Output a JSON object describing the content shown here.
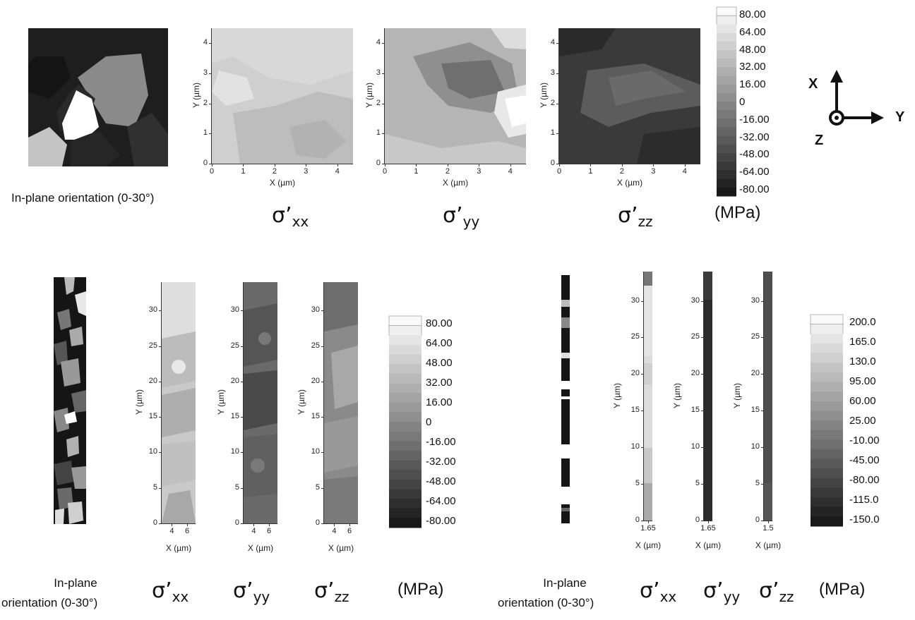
{
  "top_row": {
    "orientation_caption": "In-plane orientation (0-30°)",
    "maps": [
      {
        "id": "xx",
        "sigma": "σ’",
        "sub": "xx",
        "xlabel": "X (µm)",
        "ylabel": "Y (µm)",
        "xticks": [
          "0",
          "1",
          "2",
          "3",
          "4"
        ],
        "yticks": [
          "0",
          "1",
          "2",
          "3",
          "4"
        ]
      },
      {
        "id": "yy",
        "sigma": "σ’",
        "sub": "yy",
        "xlabel": "X (µm)",
        "ylabel": "Y (µm)",
        "xticks": [
          "0",
          "1",
          "2",
          "3",
          "4"
        ],
        "yticks": [
          "0",
          "1",
          "2",
          "3",
          "4"
        ]
      },
      {
        "id": "zz",
        "sigma": "σ’",
        "sub": "zz",
        "xlabel": "X (µm)",
        "ylabel": "Y (µm)",
        "xticks": [
          "0",
          "1",
          "2",
          "3",
          "4"
        ],
        "yticks": [
          "0",
          "1",
          "2",
          "3",
          "4"
        ]
      }
    ],
    "colorbar_values": [
      "80.00",
      "64.00",
      "48.00",
      "32.00",
      "16.00",
      "0",
      "-16.00",
      "-32.00",
      "-48.00",
      "-64.00",
      "-80.00"
    ],
    "unit": "(MPa)",
    "axes_triad": {
      "x": "X",
      "y": "Y",
      "z": "Z"
    }
  },
  "bottom_left": {
    "orientation_caption_line1": "In-plane",
    "orientation_caption_line2": "orientation (0-30°)",
    "maps": [
      {
        "id": "bl-xx",
        "sigma": "σ’",
        "sub": "xx",
        "xlabel": "X (µm)",
        "ylabel": "Y (µm)",
        "xticks": [
          "4",
          "6"
        ],
        "yticks": [
          "0",
          "5",
          "10",
          "15",
          "20",
          "25",
          "30"
        ]
      },
      {
        "id": "bl-yy",
        "sigma": "σ’",
        "sub": "yy",
        "xlabel": "X (µm)",
        "ylabel": "Y (µm)",
        "xticks": [
          "4",
          "6"
        ],
        "yticks": [
          "0",
          "5",
          "10",
          "15",
          "20",
          "25",
          "30"
        ]
      },
      {
        "id": "bl-zz",
        "sigma": "σ’",
        "sub": "zz",
        "xlabel": "X (µm)",
        "ylabel": "Y (µm)",
        "xticks": [
          "4",
          "6"
        ],
        "yticks": [
          "0",
          "5",
          "10",
          "15",
          "20",
          "25",
          "30"
        ]
      }
    ],
    "colorbar_values": [
      "80.00",
      "64.00",
      "48.00",
      "32.00",
      "16.00",
      "0",
      "-16.00",
      "-32.00",
      "-48.00",
      "-64.00",
      "-80.00"
    ],
    "unit": "(MPa)"
  },
  "bottom_right": {
    "orientation_caption_line1": "In-plane",
    "orientation_caption_line2": "orientation (0-30°)",
    "maps": [
      {
        "id": "br-xx",
        "sigma": "σ’",
        "sub": "xx",
        "xlabel": "X (µm)",
        "ylabel": "Y (µm)",
        "xticks": [
          "1.65"
        ],
        "yticks": [
          "0",
          "5",
          "10",
          "15",
          "20",
          "25",
          "30"
        ]
      },
      {
        "id": "br-yy",
        "sigma": "σ’",
        "sub": "yy",
        "xlabel": "X (µm)",
        "ylabel": "Y (µm)",
        "xticks": [
          "1.65"
        ],
        "yticks": [
          "0",
          "5",
          "10",
          "15",
          "20",
          "25",
          "30"
        ]
      },
      {
        "id": "br-zz",
        "sigma": "σ’",
        "sub": "zz",
        "xlabel": "X (µm)",
        "ylabel": "Y (µm)",
        "xticks": [
          "1.5"
        ],
        "yticks": [
          "0",
          "5",
          "10",
          "15",
          "20",
          "25",
          "30"
        ]
      }
    ],
    "colorbar_values": [
      "200.0",
      "165.0",
      "130.0",
      "95.00",
      "60.00",
      "25.00",
      "-10.00",
      "-45.00",
      "-80.00",
      "-115.0",
      "-150.0"
    ],
    "unit": "(MPa)"
  }
}
